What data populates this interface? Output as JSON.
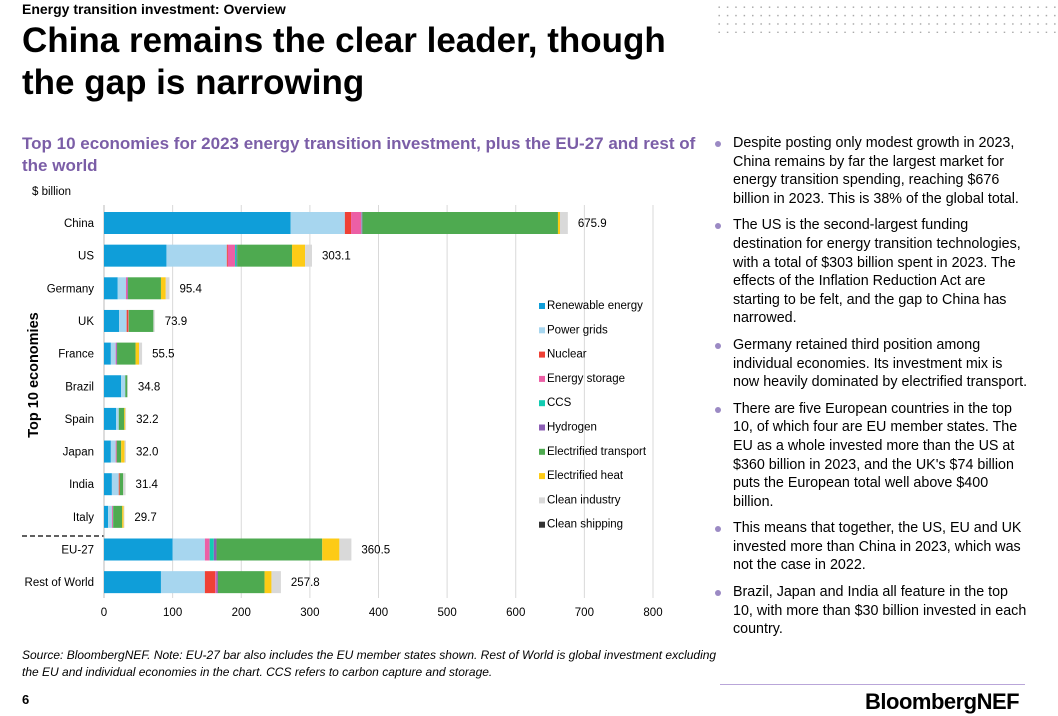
{
  "header": {
    "kicker": "Energy transition investment: Overview",
    "title": "China remains the clear leader, though the gap is narrowing"
  },
  "chart_data": {
    "type": "bar",
    "orientation": "horizontal",
    "stacked": true,
    "title": "Top 10 economies for 2023 energy transition investment, plus the EU-27 and rest of the world",
    "unit_label": "$ billion",
    "ylabel": "Top 10 economies",
    "xlim": [
      0,
      800
    ],
    "xticks": [
      "0",
      "100",
      "200",
      "300",
      "400",
      "500",
      "600",
      "700",
      "800"
    ],
    "grid": "vertical",
    "legend_position": "right",
    "categories": [
      "China",
      "US",
      "Germany",
      "UK",
      "France",
      "Brazil",
      "Spain",
      "Japan",
      "India",
      "Italy",
      "EU-27",
      "Rest of World"
    ],
    "totals": [
      "675.9",
      "303.1",
      "95.4",
      "73.9",
      "55.5",
      "34.8",
      "32.2",
      "32.0",
      "31.4",
      "29.7",
      "360.5",
      "257.8"
    ],
    "series": [
      {
        "name": "Renewable energy",
        "color": "#0f9ed9",
        "values": [
          272,
          91,
          20,
          22,
          10,
          25,
          17.5,
          10,
          11.5,
          6,
          100,
          83
        ]
      },
      {
        "name": "Power grids",
        "color": "#a7d6ef",
        "values": [
          79,
          88,
          12,
          11,
          7,
          6,
          4,
          7,
          10,
          5.5,
          47,
          64
        ]
      },
      {
        "name": "Nuclear",
        "color": "#ef4135",
        "values": [
          9,
          1.5,
          0,
          2.5,
          0,
          0,
          0,
          0,
          1.5,
          0,
          0,
          15
        ]
      },
      {
        "name": "Energy storage",
        "color": "#ec5fa5",
        "values": [
          15,
          10.5,
          2,
          0.5,
          1,
          0,
          0,
          1.5,
          0,
          1.5,
          7,
          2
        ]
      },
      {
        "name": "CCS",
        "color": "#12ccb2",
        "values": [
          0.5,
          2,
          0,
          0,
          0,
          0,
          0,
          0,
          0,
          0.5,
          6,
          0
        ]
      },
      {
        "name": "Hydrogen",
        "color": "#8c5fb5",
        "values": [
          1,
          1,
          1,
          0,
          1,
          0,
          0,
          0,
          0,
          0,
          4,
          2
        ]
      },
      {
        "name": "Electrified transport",
        "color": "#4eaa50",
        "values": [
          285,
          80,
          48,
          36,
          27,
          3,
          8,
          6.5,
          5,
          13,
          154,
          68
        ]
      },
      {
        "name": "Electrified heat",
        "color": "#fdcb16",
        "values": [
          3,
          19,
          7,
          0,
          5,
          0,
          1.5,
          5,
          0,
          2,
          25,
          10
        ]
      },
      {
        "name": "Clean industry",
        "color": "#d9d9d9",
        "values": [
          11.4,
          10.1,
          5.4,
          1.9,
          4.5,
          0.8,
          1.2,
          2,
          3.4,
          1.2,
          17.5,
          13.8
        ]
      },
      {
        "name": "Clean shipping",
        "color": "#333333",
        "values": [
          0,
          0,
          0,
          0,
          0,
          0,
          0,
          0,
          0,
          0,
          0,
          0
        ]
      }
    ]
  },
  "bullets": [
    "Despite posting only modest growth in 2023, China remains by far the largest market for energy transition spending, reaching $676 billion in 2023. This is 38% of the global total.",
    "The US is the second-largest funding destination for energy transition technologies, with a total of $303 billion spent in 2023. The effects of the Inflation Reduction Act are starting to be felt, and the gap to China has narrowed.",
    "Germany retained third position among individual economies. Its investment mix is now heavily dominated by electrified transport.",
    "There are five European countries in the top 10, of which four are EU member states. The EU as a whole invested more than the US at $360 billion in 2023, and the UK's $74 billion puts the European total well above $400 billion.",
    "This means that together, the US, EU and UK invested more than China in 2023, which was not the case in 2022.",
    "Brazil, Japan and India all feature in the top 10, with more than $30 billion invested in each country."
  ],
  "source": "Source: BloombergNEF. Note: EU-27 bar also includes the EU member states shown. Rest of World is global investment excluding the EU and individual economies in the chart. CCS refers to carbon capture and storage.",
  "page_number": "6",
  "logo": "BloombergNEF"
}
